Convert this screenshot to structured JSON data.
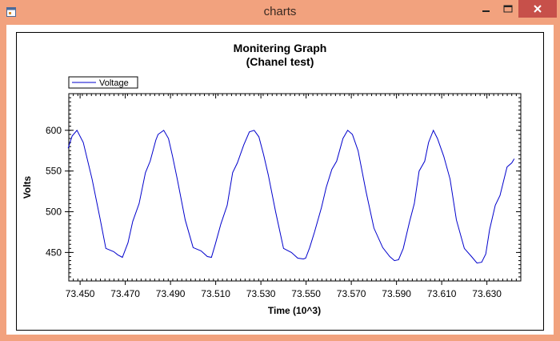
{
  "window": {
    "title": "charts",
    "frame_color": "#f2a27e",
    "close_color": "#c7504a"
  },
  "icons": {
    "app": "app-icon",
    "minimize": "minimize-icon",
    "maximize": "maximize-icon",
    "close": "close-icon"
  },
  "chart_data": {
    "type": "line",
    "title": "Monitering Graph",
    "subtitle": "(Chanel test)",
    "xlabel": "Time (10^3)",
    "ylabel": "Volts",
    "xlim": [
      73.445,
      73.645
    ],
    "ylim": [
      415,
      645
    ],
    "x_ticks": [
      "73.450",
      "73.470",
      "73.490",
      "73.510",
      "73.530",
      "73.550",
      "73.570",
      "73.590",
      "73.610",
      "73.630"
    ],
    "x_tick_values": [
      73.45,
      73.47,
      73.49,
      73.51,
      73.53,
      73.55,
      73.57,
      73.59,
      73.61,
      73.63
    ],
    "y_ticks": [
      "450",
      "500",
      "550",
      "600"
    ],
    "y_tick_values": [
      450,
      500,
      550,
      600
    ],
    "legend": {
      "position": "top-left",
      "entries": [
        "Voltage"
      ]
    },
    "grid": false,
    "series": [
      {
        "name": "Voltage",
        "color": "#0000cc",
        "x": [
          73.4447,
          73.4465,
          73.4486,
          73.4514,
          73.4553,
          73.4588,
          73.4614,
          73.4649,
          73.4667,
          73.4687,
          73.4712,
          73.4733,
          73.4761,
          73.4789,
          73.481,
          73.4835,
          73.4845,
          73.487,
          73.4891,
          73.4909,
          73.493,
          73.4965,
          73.5,
          73.5035,
          73.5063,
          73.5081,
          73.5098,
          73.5123,
          73.5151,
          73.5175,
          73.5196,
          73.5224,
          73.5249,
          73.527,
          73.5291,
          73.5312,
          73.5333,
          73.5365,
          73.54,
          73.5435,
          73.5463,
          73.5488,
          73.5498,
          73.5516,
          73.5537,
          73.5568,
          73.5589,
          73.5614,
          73.5635,
          73.5663,
          73.5684,
          73.5705,
          73.573,
          73.5765,
          73.58,
          73.5839,
          73.587,
          73.5891,
          73.5909,
          73.593,
          73.5958,
          73.5979,
          73.6,
          73.6025,
          73.6042,
          73.6063,
          73.6081,
          73.6109,
          73.6137,
          73.6165,
          73.62,
          73.6232,
          73.6256,
          73.6277,
          73.6295,
          73.6312,
          73.6337,
          73.6358,
          73.6389,
          73.641,
          73.6421
        ],
        "values": [
          578,
          593,
          600,
          585,
          540,
          492,
          455,
          451,
          447,
          444,
          462,
          488,
          510,
          548,
          562,
          588,
          595,
          600,
          590,
          568,
          540,
          490,
          456,
          452,
          445,
          444,
          460,
          485,
          508,
          548,
          560,
          582,
          598,
          600,
          592,
          570,
          545,
          500,
          455,
          450,
          443,
          442,
          443,
          456,
          475,
          505,
          530,
          552,
          562,
          590,
          600,
          595,
          575,
          525,
          480,
          456,
          445,
          440,
          441,
          455,
          488,
          510,
          550,
          562,
          585,
          600,
          590,
          568,
          540,
          490,
          455,
          445,
          437,
          438,
          448,
          478,
          508,
          520,
          555,
          560,
          565
        ]
      }
    ]
  }
}
